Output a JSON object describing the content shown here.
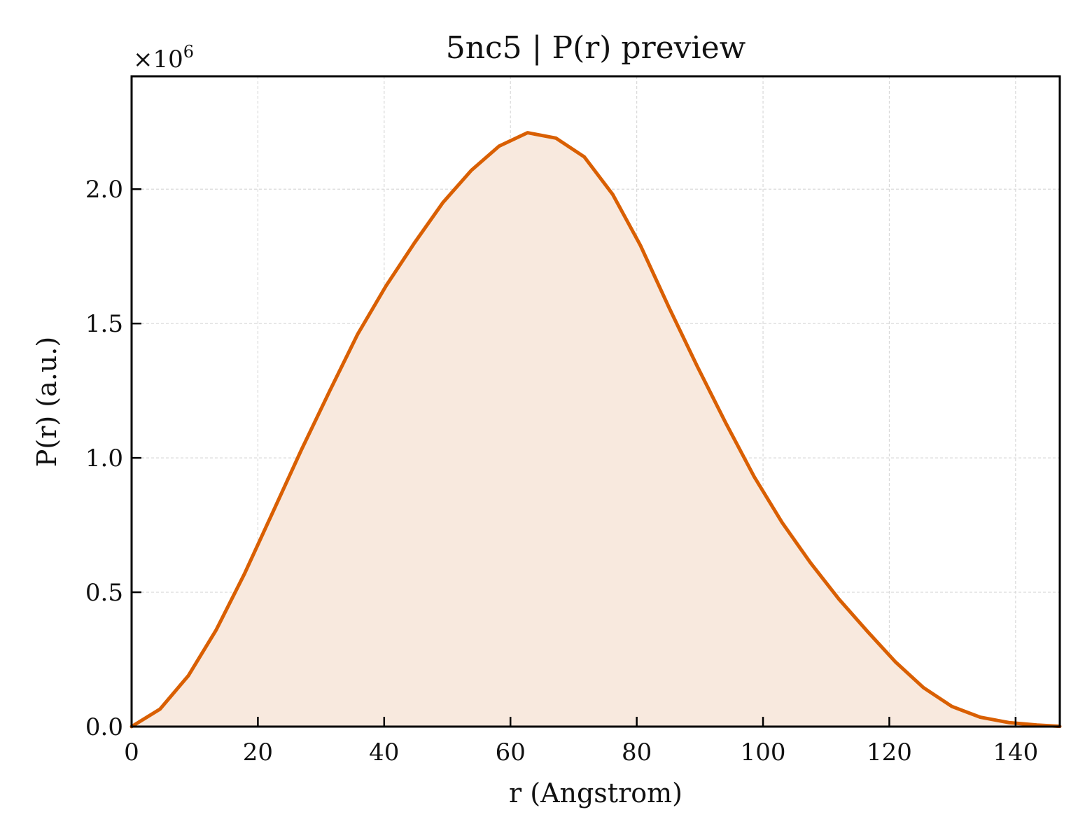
{
  "chart_data": {
    "type": "area",
    "title": "5nc5 | P(r) preview",
    "xlabel": "r (Angstrom)",
    "ylabel": "P(r) (a.u.)",
    "y_offset_text": {
      "base": "×10",
      "exponent": "6"
    },
    "xlim": [
      0,
      147
    ],
    "ylim": [
      0,
      2.42
    ],
    "x_ticks": [
      0,
      20,
      40,
      60,
      80,
      100,
      120,
      140
    ],
    "x_tick_labels": [
      "0",
      "20",
      "40",
      "60",
      "80",
      "100",
      "120",
      "140"
    ],
    "y_ticks": [
      0.0,
      0.5,
      1.0,
      1.5,
      2.0
    ],
    "y_tick_labels": [
      "0.0",
      "0.5",
      "1.0",
      "1.5",
      "2.0"
    ],
    "grid": true,
    "legend": "none",
    "series": [
      {
        "color": "#d95f02",
        "fill_color": "#f8e9de",
        "x": [
          0,
          4.5,
          9,
          13.4,
          17.9,
          22.4,
          26.9,
          31.4,
          35.8,
          40.3,
          44.8,
          49.3,
          53.8,
          58.2,
          62.7,
          67.2,
          71.7,
          76.2,
          80.6,
          85.1,
          89.6,
          94.1,
          98.6,
          103,
          107.5,
          112,
          116.5,
          121,
          125.4,
          129.9,
          134.4,
          138.9,
          143.4,
          147
        ],
        "y": [
          0.0,
          0.065,
          0.19,
          0.36,
          0.57,
          0.8,
          1.03,
          1.25,
          1.46,
          1.64,
          1.8,
          1.95,
          2.07,
          2.16,
          2.21,
          2.19,
          2.12,
          1.98,
          1.79,
          1.56,
          1.34,
          1.13,
          0.93,
          0.76,
          0.61,
          0.475,
          0.355,
          0.24,
          0.145,
          0.075,
          0.035,
          0.015,
          0.006,
          0.001
        ]
      }
    ]
  }
}
